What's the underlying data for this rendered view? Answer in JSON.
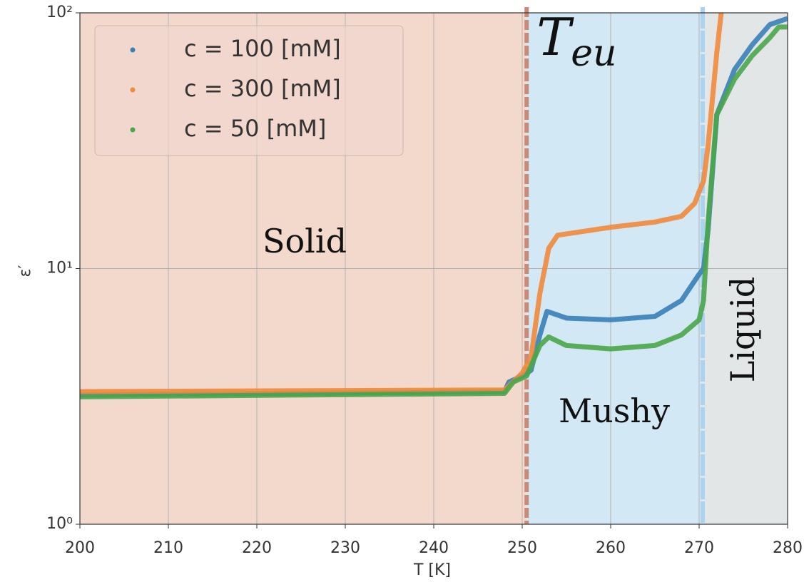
{
  "chart_data": {
    "type": "line",
    "xlabel": "T [K]",
    "ylabel": "ε′",
    "xlim": [
      200,
      280
    ],
    "xticks": [
      200,
      210,
      220,
      230,
      240,
      250,
      260,
      270,
      280
    ],
    "ylim": [
      1,
      100
    ],
    "log_y": true,
    "yticks": [
      {
        "value": 1,
        "label": "10⁰"
      },
      {
        "value": 10,
        "label": "10¹"
      },
      {
        "value": 100,
        "label": "10²"
      }
    ],
    "grid": true,
    "legend": "upper left",
    "regions": [
      {
        "label": "Solid",
        "start": 200,
        "end": 250.5,
        "color": "#f3d8cc"
      },
      {
        "label": "Mushy",
        "start": 250.5,
        "end": 270.4,
        "color": "#d3e8f5"
      },
      {
        "label": "Liquid",
        "start": 270.4,
        "end": 280,
        "color": "#e3e6e7"
      }
    ],
    "vlines": [
      {
        "x": 250.5,
        "color": "#c98a78",
        "label": "T",
        "sub": "eu"
      },
      {
        "x": 270.4,
        "color": "#a9d3ee"
      }
    ],
    "series": [
      {
        "name": "c = 100 [mM]",
        "color": "#3a7fb8",
        "x": [
          200,
          248,
          248.5,
          250,
          251,
          252,
          252.8,
          255,
          260,
          265,
          268,
          270,
          270.5,
          271,
          272,
          274,
          276,
          278,
          280
        ],
        "values": [
          3.2,
          3.3,
          3.6,
          3.8,
          4.0,
          5.5,
          6.8,
          6.4,
          6.3,
          6.5,
          7.5,
          9.5,
          10,
          14,
          40,
          60,
          75,
          90,
          95
        ]
      },
      {
        "name": "c = 300 [mM]",
        "color": "#ef8a3c",
        "x": [
          200,
          248,
          250,
          251,
          252,
          253,
          254,
          260,
          265,
          268,
          269.5,
          270,
          270.5,
          271,
          272,
          272.5
        ],
        "values": [
          3.3,
          3.35,
          3.9,
          4.5,
          8,
          12,
          13.5,
          14.5,
          15.2,
          16,
          18,
          20,
          22,
          30,
          70,
          100
        ]
      },
      {
        "name": "c = 50 [mM]",
        "color": "#4aa64a",
        "x": [
          200,
          248,
          249,
          250.5,
          252,
          253,
          255,
          260,
          265,
          268,
          270,
          270.5,
          271,
          272,
          274,
          276,
          278,
          279,
          280
        ],
        "values": [
          3.15,
          3.25,
          3.6,
          3.8,
          5,
          5.4,
          5,
          4.85,
          5,
          5.5,
          6.3,
          7.5,
          15,
          40,
          55,
          68,
          80,
          88,
          88
        ]
      }
    ]
  }
}
